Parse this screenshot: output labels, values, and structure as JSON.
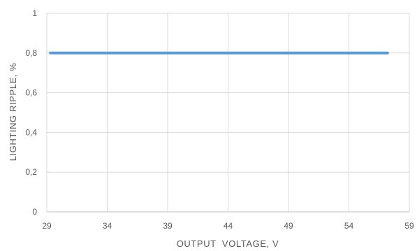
{
  "chart_data": {
    "type": "line",
    "xlabel": "OUTPUT  VOLTAGE, V",
    "ylabel": "LIGHTING RIPPLE, %",
    "xlim": [
      29,
      59
    ],
    "ylim": [
      0,
      1
    ],
    "x_ticks": [
      "29",
      "34",
      "39",
      "44",
      "49",
      "54",
      "59"
    ],
    "y_ticks": [
      "0",
      "0,2",
      "0,4",
      "0,6",
      "0,8",
      "1"
    ],
    "grid": true,
    "series": [
      {
        "x": [
          29.3,
          57.2
        ],
        "values": [
          0.8,
          0.8
        ],
        "color": "#5b9bd5"
      }
    ]
  }
}
